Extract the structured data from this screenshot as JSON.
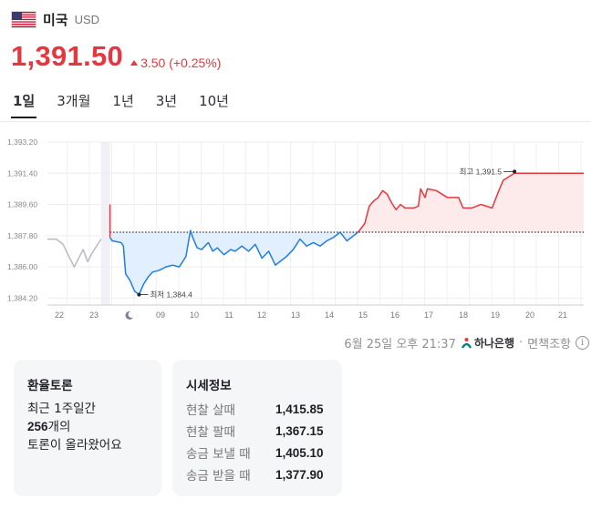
{
  "header": {
    "flag_icon": "us-flag-icon",
    "country": "미국",
    "currency": "USD"
  },
  "quote": {
    "price": "1,391.50",
    "change": "3.50 (+0.25%)",
    "direction": "up",
    "color": "#e8363e"
  },
  "tabs": [
    {
      "label": "1일",
      "active": true
    },
    {
      "label": "3개월",
      "active": false
    },
    {
      "label": "1년",
      "active": false
    },
    {
      "label": "3년",
      "active": false
    },
    {
      "label": "10년",
      "active": false
    }
  ],
  "chart_data": {
    "type": "line",
    "ylim": [
      1383.8,
      1393.2
    ],
    "ytick_labels": [
      "1,393.20",
      "1,391.40",
      "1,389.60",
      "1,387.80",
      "1,386.00",
      "1,384.20"
    ],
    "yticks": [
      1393.2,
      1391.4,
      1389.6,
      1387.8,
      1386.0,
      1384.2
    ],
    "xtick_labels": [
      "22",
      "23",
      "moon-icon",
      "09",
      "10",
      "11",
      "12",
      "13",
      "14",
      "15",
      "16",
      "17",
      "18",
      "19",
      "20",
      "21"
    ],
    "x_unit": "hour of day",
    "reference_value": 1388.0,
    "annotations": {
      "high_label": "최고 1,391.5",
      "high_value": 1391.5,
      "low_label": "최저 1,384.4",
      "low_value": 1384.4
    },
    "colors": {
      "premarket": "#b9b9c3",
      "up": "#e8363e",
      "down": "#1f7ee0",
      "up_fill": "#fdebec",
      "down_fill": "#e2efff",
      "night_band": "#f0f0f6"
    },
    "series": [
      {
        "segment": "premarket",
        "x": [
          21.6,
          22.0,
          22.3,
          22.6,
          22.8,
          23.0,
          23.2,
          23.4,
          23.6,
          23.8,
          24.0
        ],
        "y": [
          1387.6,
          1387.6,
          1387.3,
          1386.5,
          1386.0,
          1386.5,
          1387.0,
          1386.3,
          1386.8,
          1387.2,
          1387.6
        ]
      },
      {
        "segment": "day-below",
        "x": [
          24.4,
          24.4,
          24.5,
          24.9,
          25.0,
          25.1,
          25.3,
          25.5,
          25.7,
          25.9,
          26.1,
          26.3,
          26.6,
          26.9,
          27.2,
          27.5,
          27.8,
          28.0,
          28.1,
          28.3,
          28.5,
          28.8,
          29.0,
          29.2,
          29.5,
          29.8,
          30.0,
          30.3,
          30.6,
          30.9,
          31.2,
          31.5,
          31.8,
          32.0,
          32.3,
          32.6,
          32.9,
          33.2,
          33.5,
          33.8,
          34.1,
          34.4,
          34.7,
          35.0,
          35.3,
          35.5
        ],
        "y": [
          1389.6,
          1387.7,
          1387.5,
          1387.4,
          1387.2,
          1385.6,
          1385.2,
          1384.6,
          1384.4,
          1385.0,
          1385.4,
          1385.7,
          1385.8,
          1386.0,
          1386.1,
          1386.0,
          1386.6,
          1388.1,
          1387.7,
          1387.1,
          1387.0,
          1387.4,
          1386.9,
          1387.1,
          1386.7,
          1387.0,
          1386.9,
          1387.2,
          1386.9,
          1387.3,
          1386.5,
          1386.9,
          1386.1,
          1386.3,
          1386.6,
          1387.0,
          1387.6,
          1387.2,
          1387.4,
          1387.2,
          1387.5,
          1387.7,
          1388.0,
          1387.5,
          1387.8,
          1388.0
        ]
      },
      {
        "segment": "day-above",
        "x": [
          35.5,
          35.8,
          36.0,
          36.2,
          36.4,
          36.6,
          36.8,
          37.0,
          37.2,
          37.4,
          37.6,
          38.0,
          38.2,
          38.3,
          38.5,
          38.6,
          39.0,
          39.5,
          40.0,
          40.2,
          40.6,
          41.0,
          41.5,
          41.8,
          42.0,
          42.5
        ],
        "y": [
          1388.0,
          1388.5,
          1389.5,
          1389.8,
          1390.0,
          1390.4,
          1390.2,
          1389.7,
          1389.3,
          1389.6,
          1389.4,
          1389.4,
          1389.5,
          1390.5,
          1390.0,
          1390.5,
          1390.4,
          1390.0,
          1390.0,
          1389.4,
          1389.4,
          1389.6,
          1389.4,
          1390.4,
          1391.0,
          1391.4
        ]
      }
    ]
  },
  "source": {
    "timestamp": "6월 25일 오후 21:37",
    "bank": "하나은행",
    "note": "면책조항",
    "bank_icon": "hana-bank-logo-icon",
    "info_icon": "info-icon"
  },
  "talk_card": {
    "title": "환율토론",
    "line1": "최근 1주일간",
    "count": "256",
    "count_suffix": "개의",
    "line3": "토론이 올라왔어요"
  },
  "rates_card": {
    "title": "시세정보",
    "rows": [
      {
        "label": "현찰 살때",
        "value": "1,415.85"
      },
      {
        "label": "현찰 팔때",
        "value": "1,367.15"
      },
      {
        "label": "송금 보낼 때",
        "value": "1,405.10"
      },
      {
        "label": "송금 받을 때",
        "value": "1,377.90"
      }
    ]
  }
}
